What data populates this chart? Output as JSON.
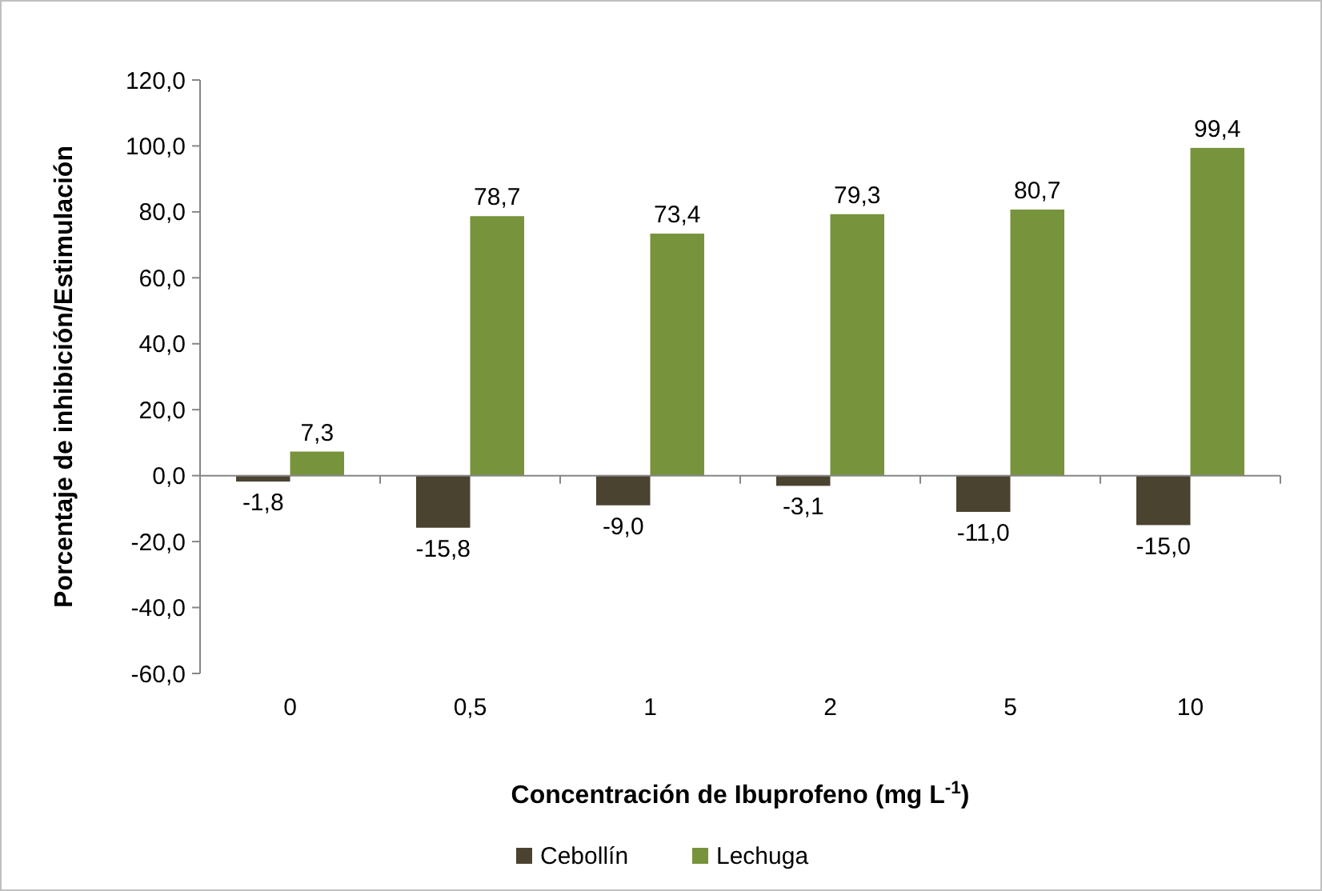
{
  "chart_data": {
    "type": "bar",
    "xlabel": "Concentración de Ibuprofeno (mg L$^{-1}$)",
    "ylabel": "Porcentaje de inhibición/Estimulación",
    "categories": [
      "0",
      "0,5",
      "1",
      "2",
      "5",
      "10"
    ],
    "series": [
      {
        "name": "Cebollín",
        "color": "#4a4330",
        "values": [
          -1.8,
          -15.8,
          -9.0,
          -3.1,
          -11.0,
          -15.0
        ],
        "value_labels": [
          "-1,8",
          "-15,8",
          "-9,0",
          "-3,1",
          "-11,0",
          "-15,0"
        ]
      },
      {
        "name": "Lechuga",
        "color": "#77933c",
        "values": [
          7.3,
          78.7,
          73.4,
          79.3,
          80.7,
          99.4
        ],
        "value_labels": [
          "7,3",
          "78,7",
          "73,4",
          "79,3",
          "80,7",
          "99,4"
        ]
      }
    ],
    "ylim": [
      -60,
      120
    ],
    "yticks": [
      {
        "value": -60,
        "label": "-60,0"
      },
      {
        "value": -40,
        "label": "-40,0"
      },
      {
        "value": -20,
        "label": "-20,0"
      },
      {
        "value": 0,
        "label": "0,0"
      },
      {
        "value": 20,
        "label": "20,0"
      },
      {
        "value": 40,
        "label": "40,0"
      },
      {
        "value": 60,
        "label": "60,0"
      },
      {
        "value": 80,
        "label": "80,0"
      },
      {
        "value": 100,
        "label": "100,0"
      },
      {
        "value": 120,
        "label": "120,0"
      }
    ],
    "legend": "bottom"
  }
}
